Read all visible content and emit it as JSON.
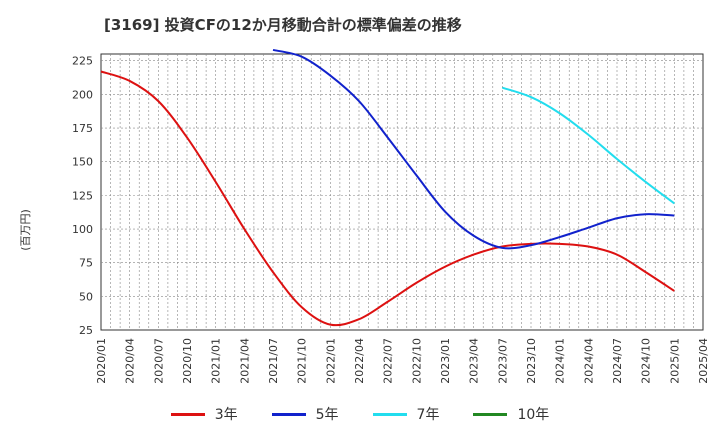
{
  "title": "[3169]  投資CFの12か月移動合計の標準偏差の推移",
  "y_unit_label": "(百万円)",
  "colors": {
    "3年": "#dd1111",
    "5年": "#1122cc",
    "7年": "#22ddee",
    "10年": "#228822",
    "grid": "#888888",
    "axis": "#333333"
  },
  "chart_data": {
    "type": "line",
    "title": "[3169]  投資CFの12か月移動合計の標準偏差の推移",
    "ylabel": "(百万円)",
    "xlabel": "",
    "ylim": [
      25,
      230
    ],
    "xlim": [
      "2020/01",
      "2025/04"
    ],
    "y_ticks": [
      25,
      50,
      75,
      100,
      125,
      150,
      175,
      200,
      225
    ],
    "x_ticks": [
      "2020/01",
      "2020/04",
      "2020/07",
      "2020/10",
      "2021/01",
      "2021/04",
      "2021/07",
      "2021/10",
      "2022/01",
      "2022/04",
      "2022/07",
      "2022/10",
      "2023/01",
      "2023/04",
      "2023/07",
      "2023/10",
      "2024/01",
      "2024/04",
      "2024/07",
      "2024/10",
      "2025/01",
      "2025/04"
    ],
    "grid": true,
    "legend_position": "bottom",
    "series": [
      {
        "name": "3年",
        "color": "#dd1111",
        "points": [
          [
            "2020/01",
            217
          ],
          [
            "2020/04",
            210
          ],
          [
            "2020/07",
            195
          ],
          [
            "2020/10",
            168
          ],
          [
            "2021/01",
            135
          ],
          [
            "2021/04",
            100
          ],
          [
            "2021/07",
            68
          ],
          [
            "2021/10",
            42
          ],
          [
            "2022/01",
            29
          ],
          [
            "2022/04",
            33
          ],
          [
            "2022/07",
            46
          ],
          [
            "2022/10",
            60
          ],
          [
            "2023/01",
            72
          ],
          [
            "2023/04",
            81
          ],
          [
            "2023/07",
            87
          ],
          [
            "2023/10",
            89
          ],
          [
            "2024/01",
            89
          ],
          [
            "2024/04",
            87
          ],
          [
            "2024/07",
            81
          ],
          [
            "2024/10",
            68
          ],
          [
            "2025/01",
            54
          ]
        ]
      },
      {
        "name": "5年",
        "color": "#1122cc",
        "points": [
          [
            "2021/07",
            233
          ],
          [
            "2021/10",
            228
          ],
          [
            "2022/01",
            214
          ],
          [
            "2022/04",
            195
          ],
          [
            "2022/07",
            168
          ],
          [
            "2022/10",
            140
          ],
          [
            "2023/01",
            113
          ],
          [
            "2023/04",
            95
          ],
          [
            "2023/07",
            86
          ],
          [
            "2023/10",
            88
          ],
          [
            "2024/01",
            94
          ],
          [
            "2024/04",
            101
          ],
          [
            "2024/07",
            108
          ],
          [
            "2024/10",
            111
          ],
          [
            "2025/01",
            110
          ]
        ]
      },
      {
        "name": "7年",
        "color": "#22ddee",
        "points": [
          [
            "2023/07",
            205
          ],
          [
            "2023/10",
            198
          ],
          [
            "2024/01",
            186
          ],
          [
            "2024/04",
            170
          ],
          [
            "2024/07",
            152
          ],
          [
            "2024/10",
            135
          ],
          [
            "2025/01",
            119
          ]
        ]
      },
      {
        "name": "10年",
        "color": "#228822",
        "points": []
      }
    ]
  }
}
